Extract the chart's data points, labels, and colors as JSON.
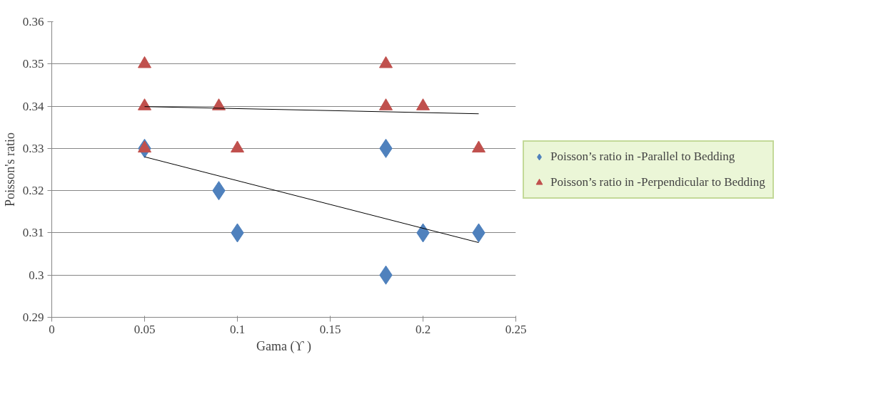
{
  "chart_data": {
    "type": "scatter",
    "xlabel": "Gama (ϒ )",
    "ylabel": "Poisson's ratio",
    "xlim": [
      0,
      0.25
    ],
    "xticks": [
      0,
      0.05,
      0.1,
      0.15,
      0.2,
      0.25
    ],
    "ylim": [
      0.29,
      0.36
    ],
    "yticks": [
      0.29,
      0.3,
      0.31,
      0.32,
      0.33,
      0.34,
      0.35,
      0.36
    ],
    "grid": "y",
    "legend": "right",
    "series": [
      {
        "name": "Poisson’s ratio in -Parallel to Bedding",
        "color": "#4f81bd",
        "marker": "diamond",
        "x": [
          0.05,
          0.09,
          0.1,
          0.18,
          0.18,
          0.2,
          0.23
        ],
        "values": [
          0.33,
          0.32,
          0.31,
          0.33,
          0.3,
          0.31,
          0.31
        ]
      },
      {
        "name": "Poisson’s ratio in -Perpendicular to Bedding",
        "color": "#c0504d",
        "marker": "triangle",
        "x": [
          0.05,
          0.05,
          0.05,
          0.09,
          0.1,
          0.18,
          0.18,
          0.2,
          0.23
        ],
        "values": [
          0.35,
          0.34,
          0.33,
          0.34,
          0.33,
          0.35,
          0.34,
          0.34,
          0.33
        ]
      },
      {
        "type": "line",
        "color": "#000000",
        "x": [
          0.05,
          0.23
        ],
        "values": [
          0.328,
          0.3077
        ]
      },
      {
        "type": "line",
        "color": "#000000",
        "x": [
          0.05,
          0.23
        ],
        "values": [
          0.3399,
          0.3382
        ]
      }
    ]
  }
}
